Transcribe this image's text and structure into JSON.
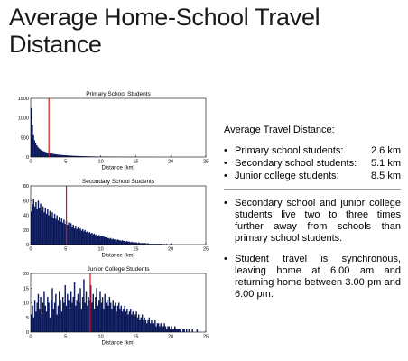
{
  "title": "Average Home-School Travel Distance",
  "summary": {
    "heading": "Average Travel Distance:",
    "items": [
      {
        "label": "Primary school students:",
        "value": "2.6 km"
      },
      {
        "label": "Secondary school students:",
        "value": "5.1 km"
      },
      {
        "label": "Junior college students:",
        "value": "8.5 km"
      }
    ]
  },
  "notes": [
    "Secondary school and junior college students live two to three times further away from schools than primary school students.",
    "Student travel is synchronous, leaving home at 6.00 am and returning home between 3.00 pm and 6.00 pm."
  ],
  "colors": {
    "bar": "#0d1a5c",
    "mean_line": "#e01010"
  },
  "chart_data": [
    {
      "type": "bar",
      "title": "Primary School Students",
      "xlabel": "Distance (km)",
      "ylabel": "",
      "xlim": [
        0,
        25
      ],
      "ylim": [
        0,
        1500
      ],
      "xticks": [
        0,
        5,
        10,
        15,
        20,
        25
      ],
      "yticks": [
        0,
        500,
        1000,
        1500
      ],
      "mean": 2.6,
      "values": [
        1250,
        820,
        560,
        430,
        360,
        300,
        260,
        225,
        200,
        180,
        162,
        150,
        140,
        130,
        120,
        112,
        105,
        98,
        92,
        86,
        80,
        76,
        72,
        68,
        64,
        61,
        58,
        55,
        52,
        50,
        47,
        45,
        43,
        41,
        39,
        37,
        35,
        34,
        32,
        31,
        29,
        28,
        27,
        26,
        25,
        24,
        23,
        22,
        21,
        20,
        19,
        18,
        17,
        17,
        16,
        15,
        15,
        14,
        13,
        13,
        12,
        12,
        11,
        11,
        10,
        10,
        10,
        9,
        9,
        9,
        8,
        8,
        8,
        7,
        7,
        7,
        7,
        6,
        6,
        6,
        6,
        5,
        5,
        5,
        5,
        5,
        4,
        4,
        4,
        4,
        4,
        4,
        3,
        3,
        3,
        3,
        3,
        3,
        3,
        2,
        2,
        2,
        2,
        2,
        2,
        2,
        2,
        2,
        2,
        2,
        1,
        1,
        1,
        1,
        1,
        1,
        1,
        1,
        1,
        1,
        1,
        1,
        1,
        1,
        1,
        1,
        1,
        1,
        1,
        1,
        1,
        1,
        1,
        1,
        1,
        1,
        1,
        1,
        1,
        1,
        0,
        0,
        0,
        0,
        0,
        0,
        0,
        0,
        0,
        0,
        0,
        0,
        0,
        0,
        0,
        0,
        0,
        0,
        0,
        0
      ]
    },
    {
      "type": "bar",
      "title": "Secondary School Students",
      "xlabel": "Distance (km)",
      "ylabel": "",
      "xlim": [
        0,
        25
      ],
      "ylim": [
        0,
        80
      ],
      "xticks": [
        0,
        5,
        10,
        15,
        20,
        25
      ],
      "yticks": [
        0,
        20,
        40,
        60,
        80
      ],
      "mean": 5.1,
      "values": [
        45,
        55,
        62,
        52,
        58,
        48,
        60,
        50,
        56,
        46,
        52,
        44,
        50,
        42,
        48,
        40,
        46,
        38,
        44,
        36,
        42,
        35,
        40,
        33,
        38,
        31,
        36,
        30,
        34,
        28,
        32,
        27,
        30,
        25,
        29,
        24,
        27,
        22,
        26,
        21,
        24,
        20,
        22,
        19,
        21,
        18,
        20,
        17,
        18,
        16,
        17,
        15,
        16,
        14,
        15,
        13,
        14,
        12,
        13,
        11,
        12,
        11,
        11,
        10,
        10,
        9,
        9,
        8,
        9,
        7,
        8,
        7,
        7,
        6,
        7,
        6,
        6,
        5,
        6,
        5,
        5,
        4,
        5,
        4,
        4,
        3,
        4,
        3,
        3,
        3,
        3,
        2,
        3,
        2,
        2,
        2,
        2,
        2,
        2,
        1,
        2,
        1,
        1,
        1,
        1,
        1,
        1,
        1,
        1,
        1,
        1,
        1,
        1,
        0,
        1,
        0,
        1,
        0,
        0,
        0,
        1,
        0,
        0,
        0,
        0,
        0,
        0,
        0,
        0,
        0,
        0,
        0,
        0,
        0,
        0,
        0,
        0,
        0,
        0,
        0,
        0,
        0,
        0,
        0,
        0,
        0,
        0,
        0,
        0,
        0
      ]
    },
    {
      "type": "bar",
      "title": "Junior College Students",
      "xlabel": "Distance (km)",
      "ylabel": "",
      "xlim": [
        0,
        25
      ],
      "ylim": [
        0,
        20
      ],
      "xticks": [
        0,
        5,
        10,
        15,
        20,
        25
      ],
      "yticks": [
        0,
        5,
        10,
        15,
        20
      ],
      "mean": 8.5,
      "values": [
        6,
        9,
        5,
        11,
        7,
        10,
        13,
        8,
        12,
        6,
        10,
        14,
        9,
        7,
        12,
        10,
        5,
        11,
        15,
        8,
        10,
        13,
        6,
        9,
        14,
        11,
        7,
        12,
        10,
        16,
        9,
        13,
        11,
        8,
        14,
        10,
        12,
        17,
        9,
        11,
        13,
        10,
        15,
        8,
        12,
        18,
        10,
        14,
        9,
        12,
        11,
        16,
        10,
        13,
        8,
        12,
        15,
        9,
        11,
        14,
        10,
        12,
        8,
        13,
        10,
        11,
        9,
        12,
        10,
        8,
        11,
        9,
        10,
        7,
        9,
        10,
        8,
        9,
        7,
        8,
        9,
        7,
        8,
        6,
        7,
        8,
        6,
        7,
        5,
        6,
        7,
        5,
        6,
        4,
        5,
        6,
        4,
        5,
        4,
        3,
        4,
        5,
        3,
        4,
        3,
        3,
        4,
        2,
        3,
        3,
        2,
        3,
        2,
        2,
        3,
        2,
        1,
        2,
        2,
        1,
        2,
        1,
        1,
        2,
        1,
        1,
        1,
        1,
        1,
        0,
        1,
        1,
        0,
        1,
        0,
        1,
        0,
        0,
        1,
        0,
        0,
        0,
        1,
        0,
        0,
        0,
        0,
        0,
        0,
        0
      ]
    }
  ]
}
